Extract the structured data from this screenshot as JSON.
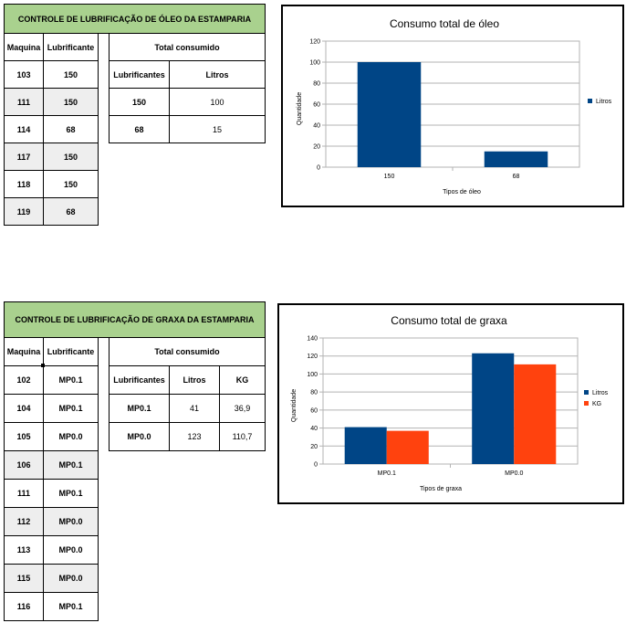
{
  "oil": {
    "title": "CONTROLE DE LUBRIFICAÇÃO DE ÓLEO DA ESTAMPARIA",
    "headers": [
      "Maquina",
      "Lubrificante"
    ],
    "rows": [
      [
        "103",
        "150"
      ],
      [
        "111",
        "150"
      ],
      [
        "114",
        "68"
      ],
      [
        "117",
        "150"
      ],
      [
        "118",
        "150"
      ],
      [
        "119",
        "68"
      ]
    ],
    "total_title": "Total consumido",
    "total_headers": [
      "Lubrificantes",
      "Litros"
    ],
    "total_rows": [
      [
        "150",
        "100"
      ],
      [
        "68",
        "15"
      ]
    ]
  },
  "grease": {
    "title": "CONTROLE DE LUBRIFICAÇÃO DE GRAXA DA ESTAMPARIA",
    "headers": [
      "Maquina",
      "Lubrificante"
    ],
    "rows": [
      [
        "102",
        "MP0.1"
      ],
      [
        "104",
        "MP0.1"
      ],
      [
        "105",
        "MP0.0"
      ],
      [
        "106",
        "MP0.1"
      ],
      [
        "111",
        "MP0.1"
      ],
      [
        "112",
        "MP0.0"
      ],
      [
        "113",
        "MP0.0"
      ],
      [
        "115",
        "MP0.0"
      ],
      [
        "116",
        "MP0.1"
      ]
    ],
    "total_title": "Total consumido",
    "total_headers": [
      "Lubrificantes",
      "Litros",
      "KG"
    ],
    "total_rows": [
      [
        "MP0.1",
        "41",
        "36,9"
      ],
      [
        "MP0.0",
        "123",
        "110,7"
      ]
    ]
  },
  "colors": {
    "header_green": "#a9d18e",
    "row_gray": "#eeeeee",
    "series_blue": "#004586",
    "series_orange": "#ff420e"
  },
  "chart_data": [
    {
      "type": "bar",
      "title": "Consumo total de óleo",
      "xlabel": "Tipos de óleo",
      "ylabel": "Quantidade",
      "categories": [
        "150",
        "68"
      ],
      "series": [
        {
          "name": "Litros",
          "values": [
            100,
            15
          ]
        }
      ],
      "ylim": [
        0,
        120
      ],
      "yticks": [
        "0",
        "20",
        "40",
        "60",
        "80",
        "100",
        "120"
      ],
      "grid": true,
      "legend": "right"
    },
    {
      "type": "bar",
      "title": "Consumo total de graxa",
      "xlabel": "Tipos de graxa",
      "ylabel": "Quantidade",
      "categories": [
        "MP0.1",
        "MP0.0"
      ],
      "series": [
        {
          "name": "Litros",
          "values": [
            41,
            123
          ]
        },
        {
          "name": "KG",
          "values": [
            36.9,
            110.7
          ]
        }
      ],
      "ylim": [
        0,
        140
      ],
      "yticks": [
        "0",
        "20",
        "40",
        "60",
        "80",
        "100",
        "120",
        "140"
      ],
      "grid": true,
      "legend": "right"
    }
  ]
}
